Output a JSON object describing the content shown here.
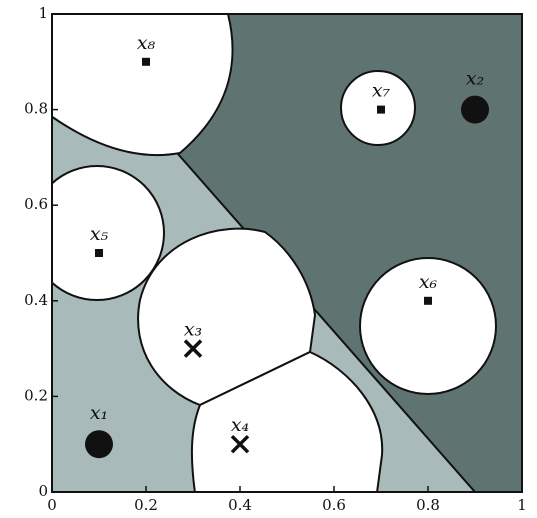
{
  "chart_data": {
    "type": "scatter",
    "points": [
      {
        "label": "x₁",
        "x": 0.1,
        "y": 0.1,
        "marker": "circle"
      },
      {
        "label": "x₂",
        "x": 0.9,
        "y": 0.8,
        "marker": "circle"
      },
      {
        "label": "x₃",
        "x": 0.3,
        "y": 0.3,
        "marker": "cross"
      },
      {
        "label": "x₄",
        "x": 0.4,
        "y": 0.1,
        "marker": "cross"
      },
      {
        "label": "x₅",
        "x": 0.1,
        "y": 0.5,
        "marker": "square"
      },
      {
        "label": "x₆",
        "x": 0.8,
        "y": 0.4,
        "marker": "square"
      },
      {
        "label": "x₇",
        "x": 0.7,
        "y": 0.8,
        "marker": "square"
      },
      {
        "label": "x₈",
        "x": 0.2,
        "y": 0.9,
        "marker": "square"
      }
    ],
    "xlim": [
      0,
      1
    ],
    "ylim": [
      0,
      1
    ],
    "xticks": [
      0,
      0.2,
      0.4,
      0.6,
      0.8,
      1
    ],
    "yticks": [
      0,
      0.2,
      0.4,
      0.6,
      0.8,
      1
    ]
  }
}
